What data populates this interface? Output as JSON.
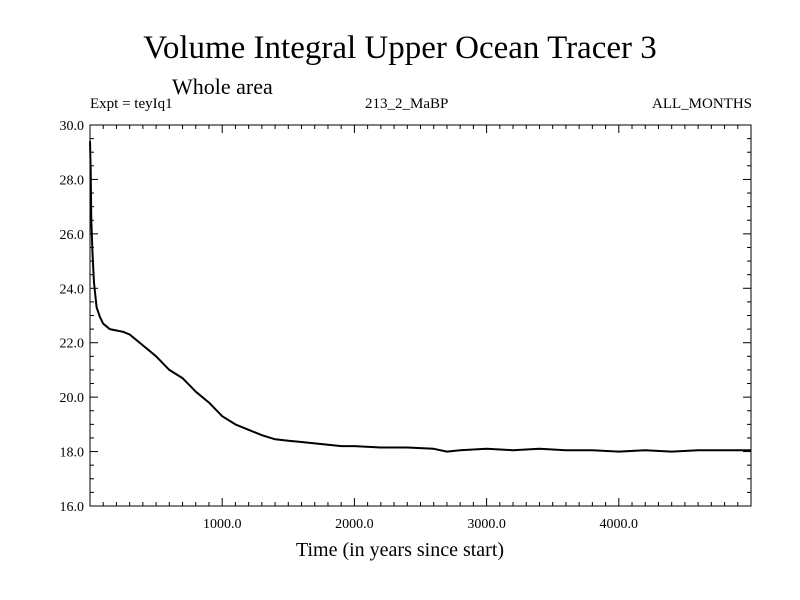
{
  "header": {
    "title": "Volume Integral Upper Ocean Tracer 3",
    "subtitle": "Whole area",
    "expt": "Expt = teyIq1",
    "run": "213_2_MaBP",
    "period": "ALL_MONTHS"
  },
  "chart_data": {
    "type": "line",
    "title": "Volume Integral Upper Ocean Tracer 3",
    "subtitle": "Whole area",
    "xlabel": "Time (in years since start)",
    "ylabel": "",
    "xlim": [
      0,
      5000
    ],
    "ylim": [
      16.0,
      30.0
    ],
    "xticks": [
      1000,
      2000,
      3000,
      4000
    ],
    "xtick_labels": [
      "1000.0",
      "2000.0",
      "3000.0",
      "4000.0"
    ],
    "yticks": [
      16,
      18,
      20,
      22,
      24,
      26,
      28,
      30
    ],
    "ytick_labels": [
      "16.0",
      "18.0",
      "20.0",
      "22.0",
      "24.0",
      "26.0",
      "28.0",
      "30.0"
    ],
    "grid": false,
    "line_color": "#000000",
    "series": [
      {
        "x": [
          0,
          5,
          10,
          20,
          30,
          50,
          75,
          100,
          150,
          200,
          250,
          300,
          400,
          500,
          600,
          700,
          800,
          900,
          1000,
          1100,
          1200,
          1300,
          1400,
          1500,
          1600,
          1700,
          1800,
          1900,
          2000,
          2200,
          2400,
          2600,
          2700,
          2800,
          3000,
          3200,
          3400,
          3600,
          3800,
          4000,
          4200,
          4400,
          4600,
          4800,
          5000
        ],
        "values": [
          29.4,
          28.3,
          26.5,
          25.2,
          24.2,
          23.3,
          22.95,
          22.7,
          22.5,
          22.45,
          22.4,
          22.3,
          21.9,
          21.5,
          21.0,
          20.7,
          20.2,
          19.8,
          19.3,
          19.0,
          18.8,
          18.6,
          18.45,
          18.4,
          18.35,
          18.3,
          18.25,
          18.2,
          18.2,
          18.15,
          18.15,
          18.1,
          18.0,
          18.05,
          18.1,
          18.05,
          18.1,
          18.05,
          18.05,
          18.0,
          18.05,
          18.0,
          18.05,
          18.05,
          18.05
        ]
      }
    ]
  }
}
